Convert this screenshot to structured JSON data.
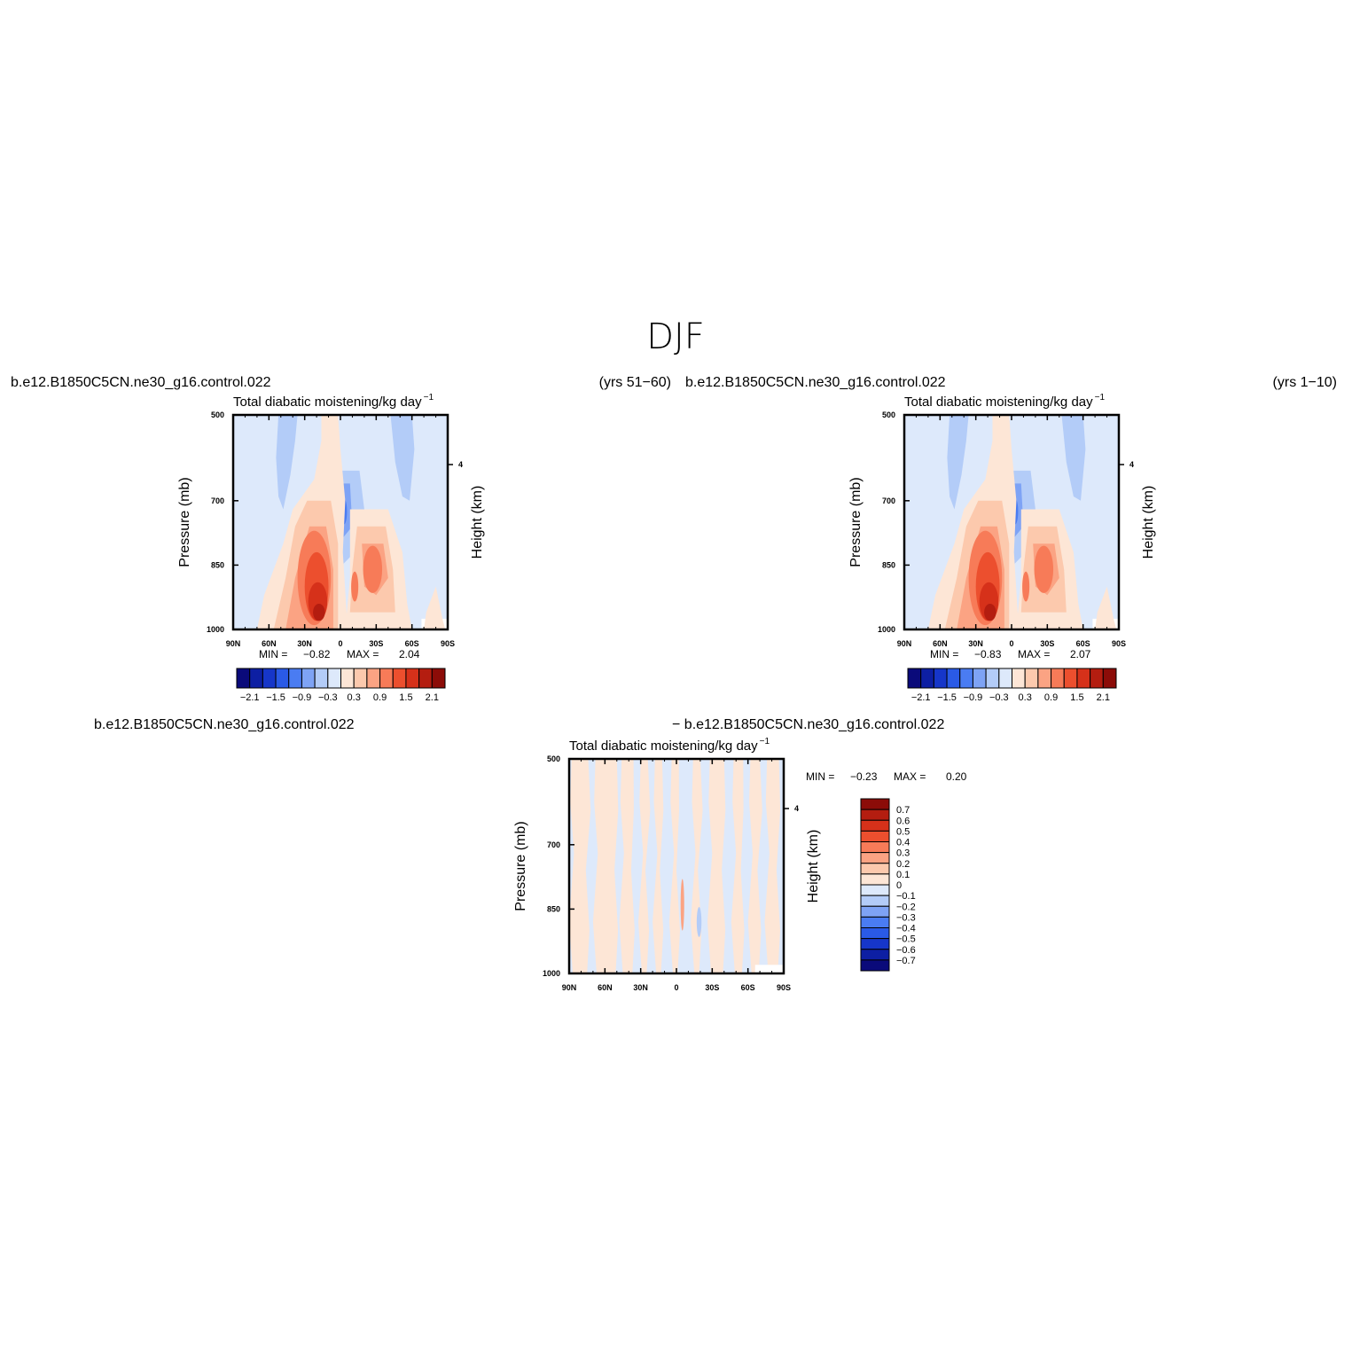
{
  "season": "DJF",
  "panels": [
    {
      "id": "top-left",
      "case_name": "b.e12.B1850C5CN.ne30_g16.control.022",
      "years": "(yrs 51−60)",
      "title": "Total diabatic moistening/kg day",
      "title_sup": "−1",
      "min_label": "MIN =",
      "min_value": "−0.82",
      "max_label": "MAX =",
      "max_value": "2.04"
    },
    {
      "id": "top-right",
      "case_name": "b.e12.B1850C5CN.ne30_g16.control.022",
      "years": "(yrs 1−10)",
      "title": "Total diabatic moistening/kg day",
      "title_sup": "−1",
      "min_label": "MIN =",
      "min_value": "−0.83",
      "max_label": "MAX =",
      "max_value": "2.07"
    },
    {
      "id": "bottom-diff",
      "case_name_left": "b.e12.B1850C5CN.ne30_g16.control.022",
      "case_name_right": "− b.e12.B1850C5CN.ne30_g16.control.022",
      "title": "Total diabatic moistening/kg day",
      "title_sup": "−1",
      "min_label": "MIN =",
      "min_value": "−0.23",
      "max_label": "MAX =",
      "max_value": "0.20"
    }
  ],
  "axes": {
    "ylabel": "Pressure (mb)",
    "ylabel_right": "Height (km)",
    "y_ticks": [
      "500",
      "700",
      "850",
      "1000"
    ],
    "y_tick_values": [
      500,
      700,
      850,
      1000
    ],
    "right_tick": "4",
    "x_ticks": [
      "90N",
      "60N",
      "30N",
      "0",
      "30S",
      "60S",
      "90S"
    ],
    "x_tick_values": [
      90,
      60,
      30,
      0,
      -30,
      -60,
      -90
    ]
  },
  "colorbar_main": {
    "labels": [
      "−2.1",
      "−1.5",
      "−0.9",
      "−0.3",
      "0.3",
      "0.9",
      "1.5",
      "2.1"
    ],
    "colors": [
      "#0a0a7a",
      "#0d1fa3",
      "#1636c9",
      "#2a5ae6",
      "#4a7cf2",
      "#7ea3f5",
      "#b3ccf8",
      "#dde9fb",
      "#fde6d6",
      "#fcc9ad",
      "#fba383",
      "#f77b58",
      "#ec4f2e",
      "#d6311a",
      "#b41d10",
      "#8c0c08"
    ]
  },
  "colorbar_diff": {
    "labels": [
      "0.7",
      "0.6",
      "0.5",
      "0.4",
      "0.3",
      "0.2",
      "0.1",
      "0",
      "−0.1",
      "−0.2",
      "−0.3",
      "−0.4",
      "−0.5",
      "−0.6",
      "−0.7"
    ],
    "colors": [
      "#8c0c08",
      "#b41d10",
      "#d6311a",
      "#ec4f2e",
      "#f77b58",
      "#fba383",
      "#fcc9ad",
      "#fde6d6",
      "#dde9fb",
      "#b3ccf8",
      "#7ea3f5",
      "#4a7cf2",
      "#2a5ae6",
      "#1636c9",
      "#0d1fa3",
      "#0a0a7a"
    ]
  },
  "chart_data": [
    {
      "type": "heatmap",
      "title": "Total diabatic moistening/kg day⁻¹",
      "xlabel": "",
      "ylabel": "Pressure (mb)",
      "xlim": [
        90,
        -90
      ],
      "ylim": [
        1000,
        500
      ],
      "min": -0.82,
      "max": 2.04,
      "levels": [
        -2.1,
        -1.8,
        -1.5,
        -1.2,
        -0.9,
        -0.6,
        -0.3,
        0,
        0.3,
        0.6,
        0.9,
        1.2,
        1.5,
        1.8,
        2.1
      ]
    },
    {
      "type": "heatmap",
      "title": "Total diabatic moistening/kg day⁻¹",
      "xlabel": "",
      "ylabel": "Pressure (mb)",
      "xlim": [
        90,
        -90
      ],
      "ylim": [
        1000,
        500
      ],
      "min": -0.83,
      "max": 2.07,
      "levels": [
        -2.1,
        -1.8,
        -1.5,
        -1.2,
        -0.9,
        -0.6,
        -0.3,
        0,
        0.3,
        0.6,
        0.9,
        1.2,
        1.5,
        1.8,
        2.1
      ]
    },
    {
      "type": "heatmap",
      "title": "Total diabatic moistening/kg day⁻¹",
      "xlabel": "",
      "ylabel": "Pressure (mb)",
      "xlim": [
        90,
        -90
      ],
      "ylim": [
        1000,
        500
      ],
      "min": -0.23,
      "max": 0.2,
      "levels": [
        -0.7,
        -0.6,
        -0.5,
        -0.4,
        -0.3,
        -0.2,
        -0.1,
        0,
        0.1,
        0.2,
        0.3,
        0.4,
        0.5,
        0.6,
        0.7
      ]
    }
  ]
}
